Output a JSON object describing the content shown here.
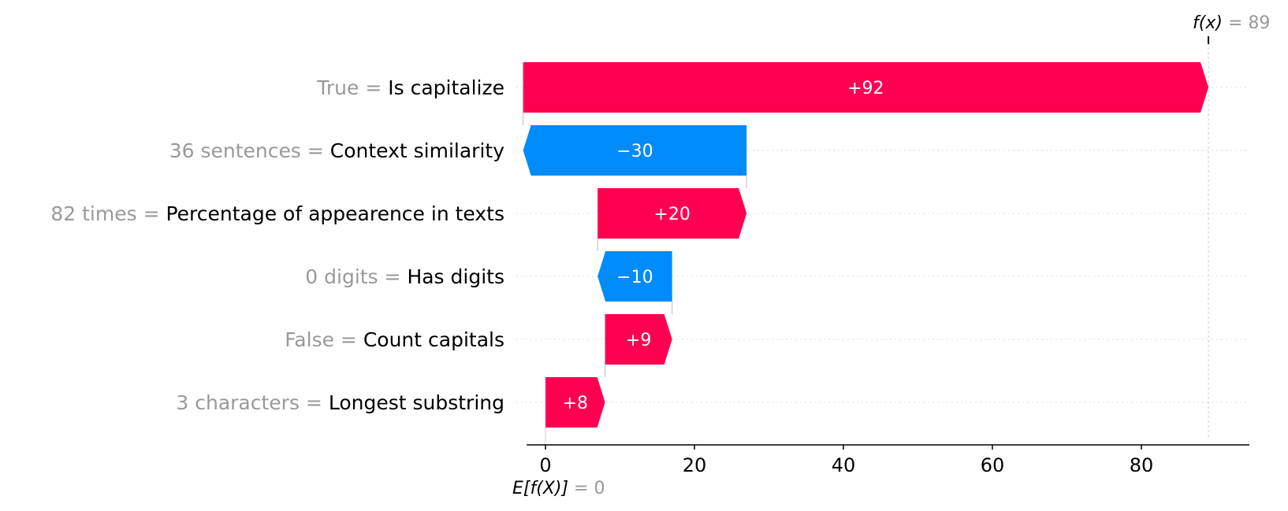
{
  "chart_data": {
    "type": "waterfall",
    "base_value": 0,
    "base_label": "0",
    "output_value": 89,
    "output_label": "89",
    "fx_label_name": "f(x)",
    "ex_label_name": "E[f(X)]",
    "equals": "=",
    "features": [
      {
        "value_text": "True",
        "name": "Is capitalize",
        "contribution": 92,
        "label": "+92"
      },
      {
        "value_text": "36 sentences",
        "name": "Context similarity",
        "contribution": -30,
        "label": "−30"
      },
      {
        "value_text": "82 times",
        "name": "Percentage of appearence in texts",
        "contribution": 20,
        "label": "+20"
      },
      {
        "value_text": "0 digits",
        "name": "Has digits",
        "contribution": -10,
        "label": "−10"
      },
      {
        "value_text": "False",
        "name": "Count capitals",
        "contribution": 9,
        "label": "+9"
      },
      {
        "value_text": "3 characters",
        "name": "Longest substring",
        "contribution": 8,
        "label": "+8"
      }
    ],
    "x_ticks": [
      0,
      20,
      40,
      60,
      80
    ],
    "xlim": [
      -4,
      95
    ],
    "colors": {
      "positive": "#ff0051",
      "negative": "#008bfb",
      "label_value": "#999999",
      "label_name": "#000000"
    }
  }
}
